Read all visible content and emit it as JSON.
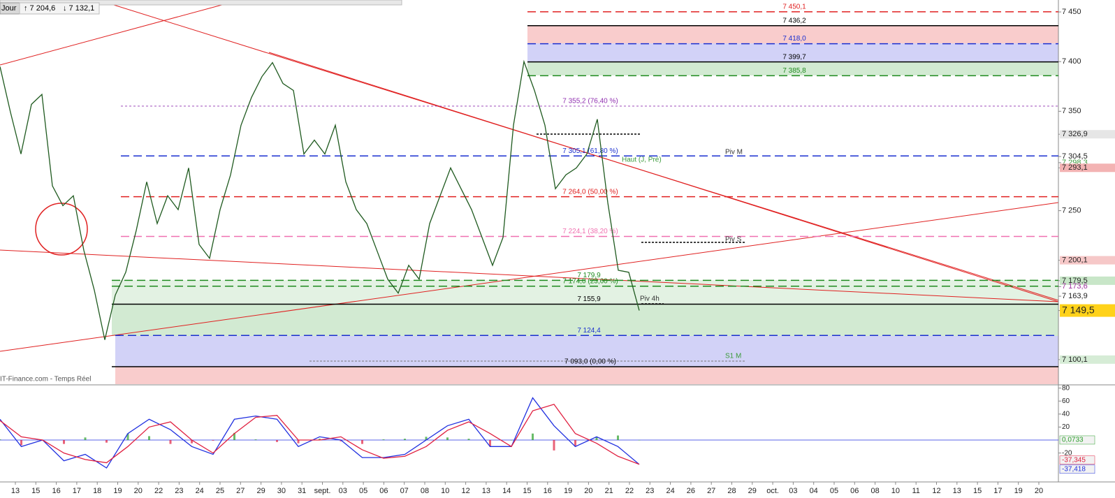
{
  "toolbar": {
    "period": "Jour",
    "high": "↑ 7 204,6",
    "low": "↓ 7 132,1"
  },
  "watermark": "IT-Finance.com - Temps Réel",
  "time_axis": {
    "labels": [
      "13",
      "15",
      "16",
      "17",
      "18",
      "19",
      "20",
      "22",
      "23",
      "24",
      "25",
      "27",
      "29",
      "30",
      "31",
      "sept.",
      "03",
      "05",
      "06",
      "07",
      "08",
      "10",
      "12",
      "13",
      "14",
      "15",
      "16",
      "19",
      "20",
      "21",
      "22",
      "23",
      "24",
      "26",
      "27",
      "28",
      "29",
      "oct.",
      "03",
      "04",
      "05",
      "06",
      "08",
      "10",
      "11",
      "12",
      "13",
      "15",
      "17",
      "19",
      "20"
    ]
  },
  "chart_data": [
    {
      "type": "line",
      "color": "#1f5a1f",
      "values": [
        7395,
        7349,
        7307,
        7357,
        7367,
        7275,
        7255,
        7265,
        7210,
        7170,
        7120,
        7165,
        7188,
        7230,
        7279,
        7237,
        7265,
        7251,
        7293,
        7216,
        7202,
        7251,
        7286,
        7336,
        7364,
        7385,
        7399,
        7378,
        7371,
        7307,
        7321,
        7307,
        7336,
        7279,
        7251,
        7237,
        7209,
        7181,
        7167,
        7195,
        7181,
        7237,
        7265,
        7293,
        7272,
        7251,
        7223,
        7195,
        7223,
        7336,
        7400,
        7371,
        7336,
        7272,
        7286,
        7293,
        7307,
        7342,
        7258,
        7190,
        7188,
        7149.5
      ],
      "ylim": [
        7075.4,
        7462
      ],
      "yticks": [
        {
          "value": 7450,
          "label": "7 450"
        },
        {
          "value": 7400,
          "label": "7 400"
        },
        {
          "value": 7350,
          "label": "7 350"
        },
        {
          "value": 7326.9,
          "label": "7 326,9",
          "bg": "#e6e6e6"
        },
        {
          "value": 7304.5,
          "label": "7 304,5"
        },
        {
          "value": 7298.3,
          "label": "7 298,3",
          "color": "#3a9a3a"
        },
        {
          "value": 7293.1,
          "label": "7 293,1",
          "bg": "#f3b3b3"
        },
        {
          "value": 7250,
          "label": "7 250"
        },
        {
          "value": 7200.1,
          "label": "7 200,1",
          "bg": "#f6c8c8"
        },
        {
          "value": 7179.5,
          "label": "7 179,5",
          "bg": "#c8e6c8"
        },
        {
          "value": 7173.6,
          "label": "7 173,6",
          "color": "#a030a0"
        },
        {
          "value": 7163.9,
          "label": "7 163,9"
        },
        {
          "value": 7149.5,
          "label": "7 149,5",
          "bg": "#ffd21a"
        },
        {
          "value": 7100.1,
          "label": "7 100,1",
          "bg": "#d6ecd6"
        }
      ],
      "levels": [
        {
          "value": 7450.1,
          "label": "7 450,1",
          "color": "#e02020",
          "style": "dashed"
        },
        {
          "value": 7436.2,
          "label": "7 436,2",
          "color": "#000000",
          "style": "solid"
        },
        {
          "value": 7418.0,
          "label": "7 418,0",
          "color": "#1a2fd0",
          "style": "dashed"
        },
        {
          "value": 7399.7,
          "label": "7 399,7",
          "color": "#000000",
          "style": "solid"
        },
        {
          "value": 7385.8,
          "label": "7 385,8",
          "color": "#1e8a1e",
          "style": "dashed"
        },
        {
          "value": 7355.2,
          "label": "7 355,2 (76,40 %)",
          "color": "#9030b0",
          "style": "dotted"
        },
        {
          "value": 7305.1,
          "label": "7 305,1 (61,80 %)",
          "color": "#1a2fd0",
          "style": "dashed"
        },
        {
          "value": 7264.0,
          "label": "7 264,0 (50,00 %)",
          "color": "#e02020",
          "style": "dashed"
        },
        {
          "value": 7224.1,
          "label": "7 224,1 (38,20 %)",
          "color": "#f070b0",
          "style": "dashed"
        },
        {
          "value": 7179.9,
          "label": "7 179,9",
          "color": "#1e8a1e",
          "style": "dashed"
        },
        {
          "value": 7174.0,
          "label": "7 174,0 (23,60 %)",
          "color": "#1e8a1e",
          "style": "dashed"
        },
        {
          "value": 7155.9,
          "label": "7 155,9",
          "color": "#000000",
          "style": "solid"
        },
        {
          "value": 7124.4,
          "label": "7 124,4",
          "color": "#1a2fd0",
          "style": "dashed"
        },
        {
          "value": 7093.0,
          "label": "7 093,0 (0,00 %)",
          "color": "#000000",
          "style": "solid"
        }
      ],
      "annotations": [
        {
          "text": "Piv M",
          "color": "#333333"
        },
        {
          "text": "Haut (J, Pré)",
          "color": "#3a9a3a"
        },
        {
          "text": "Piv S",
          "color": "#333333"
        },
        {
          "text": "Piv 4h",
          "color": "#333333"
        },
        {
          "text": "S1 M",
          "color": "#3a9a3a"
        }
      ]
    },
    {
      "type": "line",
      "ylim": [
        -64.5,
        83.9
      ],
      "yticks": [
        80,
        60,
        40,
        20,
        -20
      ],
      "series": [
        {
          "color": "#2030e0",
          "values": [
            32,
            -10,
            0,
            -32,
            -22,
            -43,
            10,
            32,
            16,
            -10,
            -22,
            32,
            37,
            32,
            -10,
            5,
            0,
            -27,
            -27,
            -22,
            0,
            22,
            32,
            -10,
            -10,
            65,
            22,
            -10,
            5,
            -10,
            -37.418
          ],
          "value_labels": [
            null,
            null,
            null,
            null,
            null,
            null,
            null,
            null,
            null,
            null,
            null,
            null,
            null,
            null,
            null,
            null,
            null,
            null,
            null,
            null,
            null,
            null,
            null,
            null,
            null,
            null,
            null,
            null,
            null,
            null,
            "-37,418"
          ]
        },
        {
          "color": "#e02040",
          "values": [
            30,
            5,
            0,
            -20,
            -30,
            -35,
            -10,
            20,
            28,
            0,
            -20,
            10,
            35,
            38,
            0,
            0,
            5,
            -15,
            -28,
            -25,
            -10,
            15,
            28,
            10,
            -10,
            45,
            55,
            10,
            -5,
            -25,
            -37.345
          ],
          "value_labels": [
            null,
            null,
            null,
            null,
            null,
            null,
            null,
            null,
            null,
            null,
            null,
            null,
            null,
            null,
            null,
            null,
            null,
            null,
            null,
            null,
            null,
            null,
            null,
            null,
            null,
            null,
            null,
            null,
            null,
            null,
            "-37,345"
          ]
        }
      ]
    },
    {
      "type": "bar",
      "ylim": [
        -64.5,
        83.9
      ],
      "color": "#2aa02a",
      "negative_color": "#e02040",
      "values": [
        1,
        -8,
        0,
        -6,
        4,
        -4,
        10,
        6,
        -6,
        -5,
        -1,
        11,
        1,
        -3,
        -5,
        2,
        -2,
        -6,
        1,
        2,
        5,
        4,
        2,
        -10,
        0,
        10,
        -16,
        -10,
        5,
        7,
        0.0733
      ],
      "value_labels": [
        null,
        null,
        null,
        null,
        null,
        null,
        null,
        null,
        null,
        null,
        null,
        null,
        null,
        null,
        null,
        null,
        null,
        null,
        null,
        null,
        null,
        null,
        null,
        null,
        null,
        null,
        null,
        null,
        null,
        null,
        "0,0733"
      ]
    }
  ]
}
